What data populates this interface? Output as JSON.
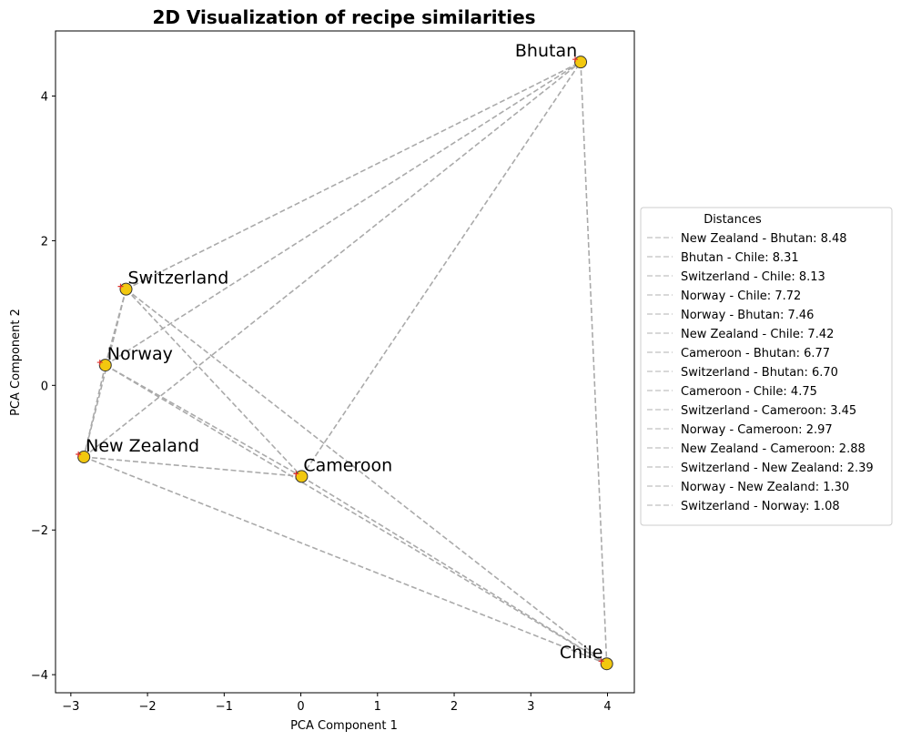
{
  "chart_data": {
    "type": "scatter",
    "title": "2D Visualization of recipe similarities",
    "xlabel": "PCA Component 1",
    "ylabel": "PCA Component 2",
    "xlim": [
      -3.2,
      4.35
    ],
    "ylim": [
      -4.25,
      4.9
    ],
    "xticks": [
      -3,
      -2,
      -1,
      0,
      1,
      2,
      3,
      4
    ],
    "yticks": [
      -4,
      -2,
      0,
      2,
      4
    ],
    "grid": false,
    "points": [
      {
        "label": "Bhutan",
        "x": 3.65,
        "y": 4.47
      },
      {
        "label": "Switzerland",
        "x": -2.28,
        "y": 1.33
      },
      {
        "label": "Norway",
        "x": -2.55,
        "y": 0.28
      },
      {
        "label": "New Zealand",
        "x": -2.83,
        "y": -0.99
      },
      {
        "label": "Cameroon",
        "x": 0.01,
        "y": -1.26
      },
      {
        "label": "Chile",
        "x": 3.99,
        "y": -3.85
      }
    ],
    "point_color": "#f2c80f",
    "edge_color": "#333333",
    "line_color": "#aaaaaa",
    "legend": {
      "title": "Distances",
      "placement": "center-right outside",
      "entries": [
        {
          "a": "New Zealand",
          "b": "Bhutan",
          "label": "New Zealand - Bhutan: 8.48"
        },
        {
          "a": "Bhutan",
          "b": "Chile",
          "label": "Bhutan - Chile: 8.31"
        },
        {
          "a": "Switzerland",
          "b": "Chile",
          "label": "Switzerland - Chile: 8.13"
        },
        {
          "a": "Norway",
          "b": "Chile",
          "label": "Norway - Chile: 7.72"
        },
        {
          "a": "Norway",
          "b": "Bhutan",
          "label": "Norway - Bhutan: 7.46"
        },
        {
          "a": "New Zealand",
          "b": "Chile",
          "label": "New Zealand - Chile: 7.42"
        },
        {
          "a": "Cameroon",
          "b": "Bhutan",
          "label": "Cameroon - Bhutan: 6.77"
        },
        {
          "a": "Switzerland",
          "b": "Bhutan",
          "label": "Switzerland - Bhutan: 6.70"
        },
        {
          "a": "Cameroon",
          "b": "Chile",
          "label": "Cameroon - Chile: 4.75"
        },
        {
          "a": "Switzerland",
          "b": "Cameroon",
          "label": "Switzerland - Cameroon: 3.45"
        },
        {
          "a": "Norway",
          "b": "Cameroon",
          "label": "Norway - Cameroon: 2.97"
        },
        {
          "a": "New Zealand",
          "b": "Cameroon",
          "label": "New Zealand - Cameroon: 2.88"
        },
        {
          "a": "Switzerland",
          "b": "New Zealand",
          "label": "Switzerland - New Zealand: 2.39"
        },
        {
          "a": "Norway",
          "b": "New Zealand",
          "label": "Norway - New Zealand: 1.30"
        },
        {
          "a": "Switzerland",
          "b": "Norway",
          "label": "Switzerland - Norway: 1.08"
        }
      ]
    }
  }
}
